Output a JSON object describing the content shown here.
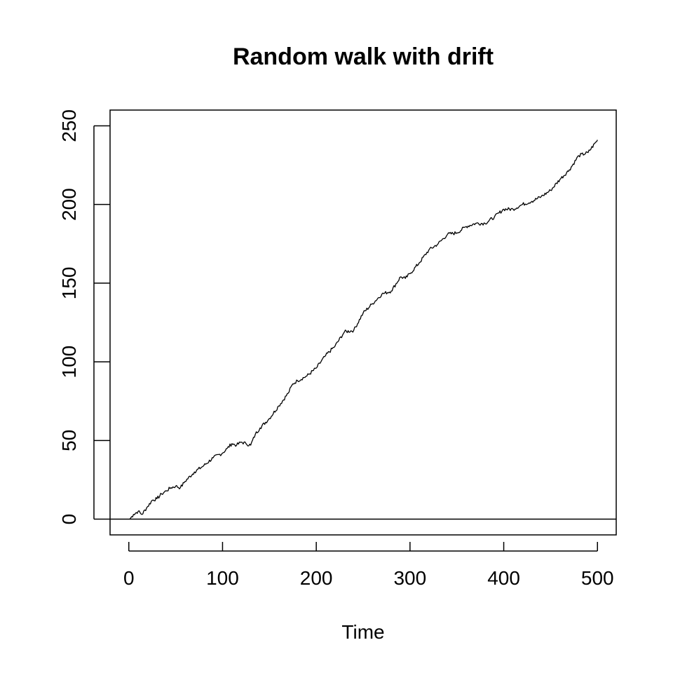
{
  "chart_data": {
    "type": "line",
    "title": "Random walk with drift",
    "xlabel": "Time",
    "ylabel": "",
    "xlim": [
      -20,
      520
    ],
    "ylim": [
      -10,
      260
    ],
    "x_ticks": [
      "0",
      "100",
      "200",
      "300",
      "400",
      "500"
    ],
    "y_ticks": [
      "0",
      "50",
      "100",
      "150",
      "200",
      "250"
    ],
    "hline": 0,
    "grid": false,
    "legend": "none",
    "line_color": "#000000",
    "series": [
      {
        "x": [
          1,
          5,
          10,
          14,
          20,
          25,
          30,
          35,
          40,
          45,
          50,
          55,
          60,
          70,
          80,
          90,
          100,
          105,
          110,
          115,
          120,
          125,
          130,
          135,
          140,
          150,
          160,
          170,
          175,
          180,
          190,
          200,
          210,
          220,
          230,
          240,
          250,
          260,
          270,
          280,
          290,
          295,
          300,
          310,
          320,
          330,
          340,
          350,
          360,
          370,
          380,
          390,
          400,
          410,
          420,
          430,
          440,
          450,
          460,
          470,
          480,
          490,
          500
        ],
        "y": [
          0,
          3,
          5,
          3,
          8,
          12,
          13,
          16,
          18,
          20,
          21,
          20,
          24,
          30,
          34,
          39,
          42,
          45,
          48,
          47,
          49,
          48,
          47,
          54,
          58,
          64,
          72,
          80,
          86,
          88,
          91,
          96,
          104,
          110,
          119,
          120,
          131,
          137,
          143,
          145,
          154,
          153,
          156,
          163,
          171,
          175,
          181,
          182,
          186,
          188,
          188,
          192,
          197,
          197,
          200,
          202,
          205,
          209,
          216,
          222,
          231,
          233,
          241
        ]
      }
    ]
  }
}
